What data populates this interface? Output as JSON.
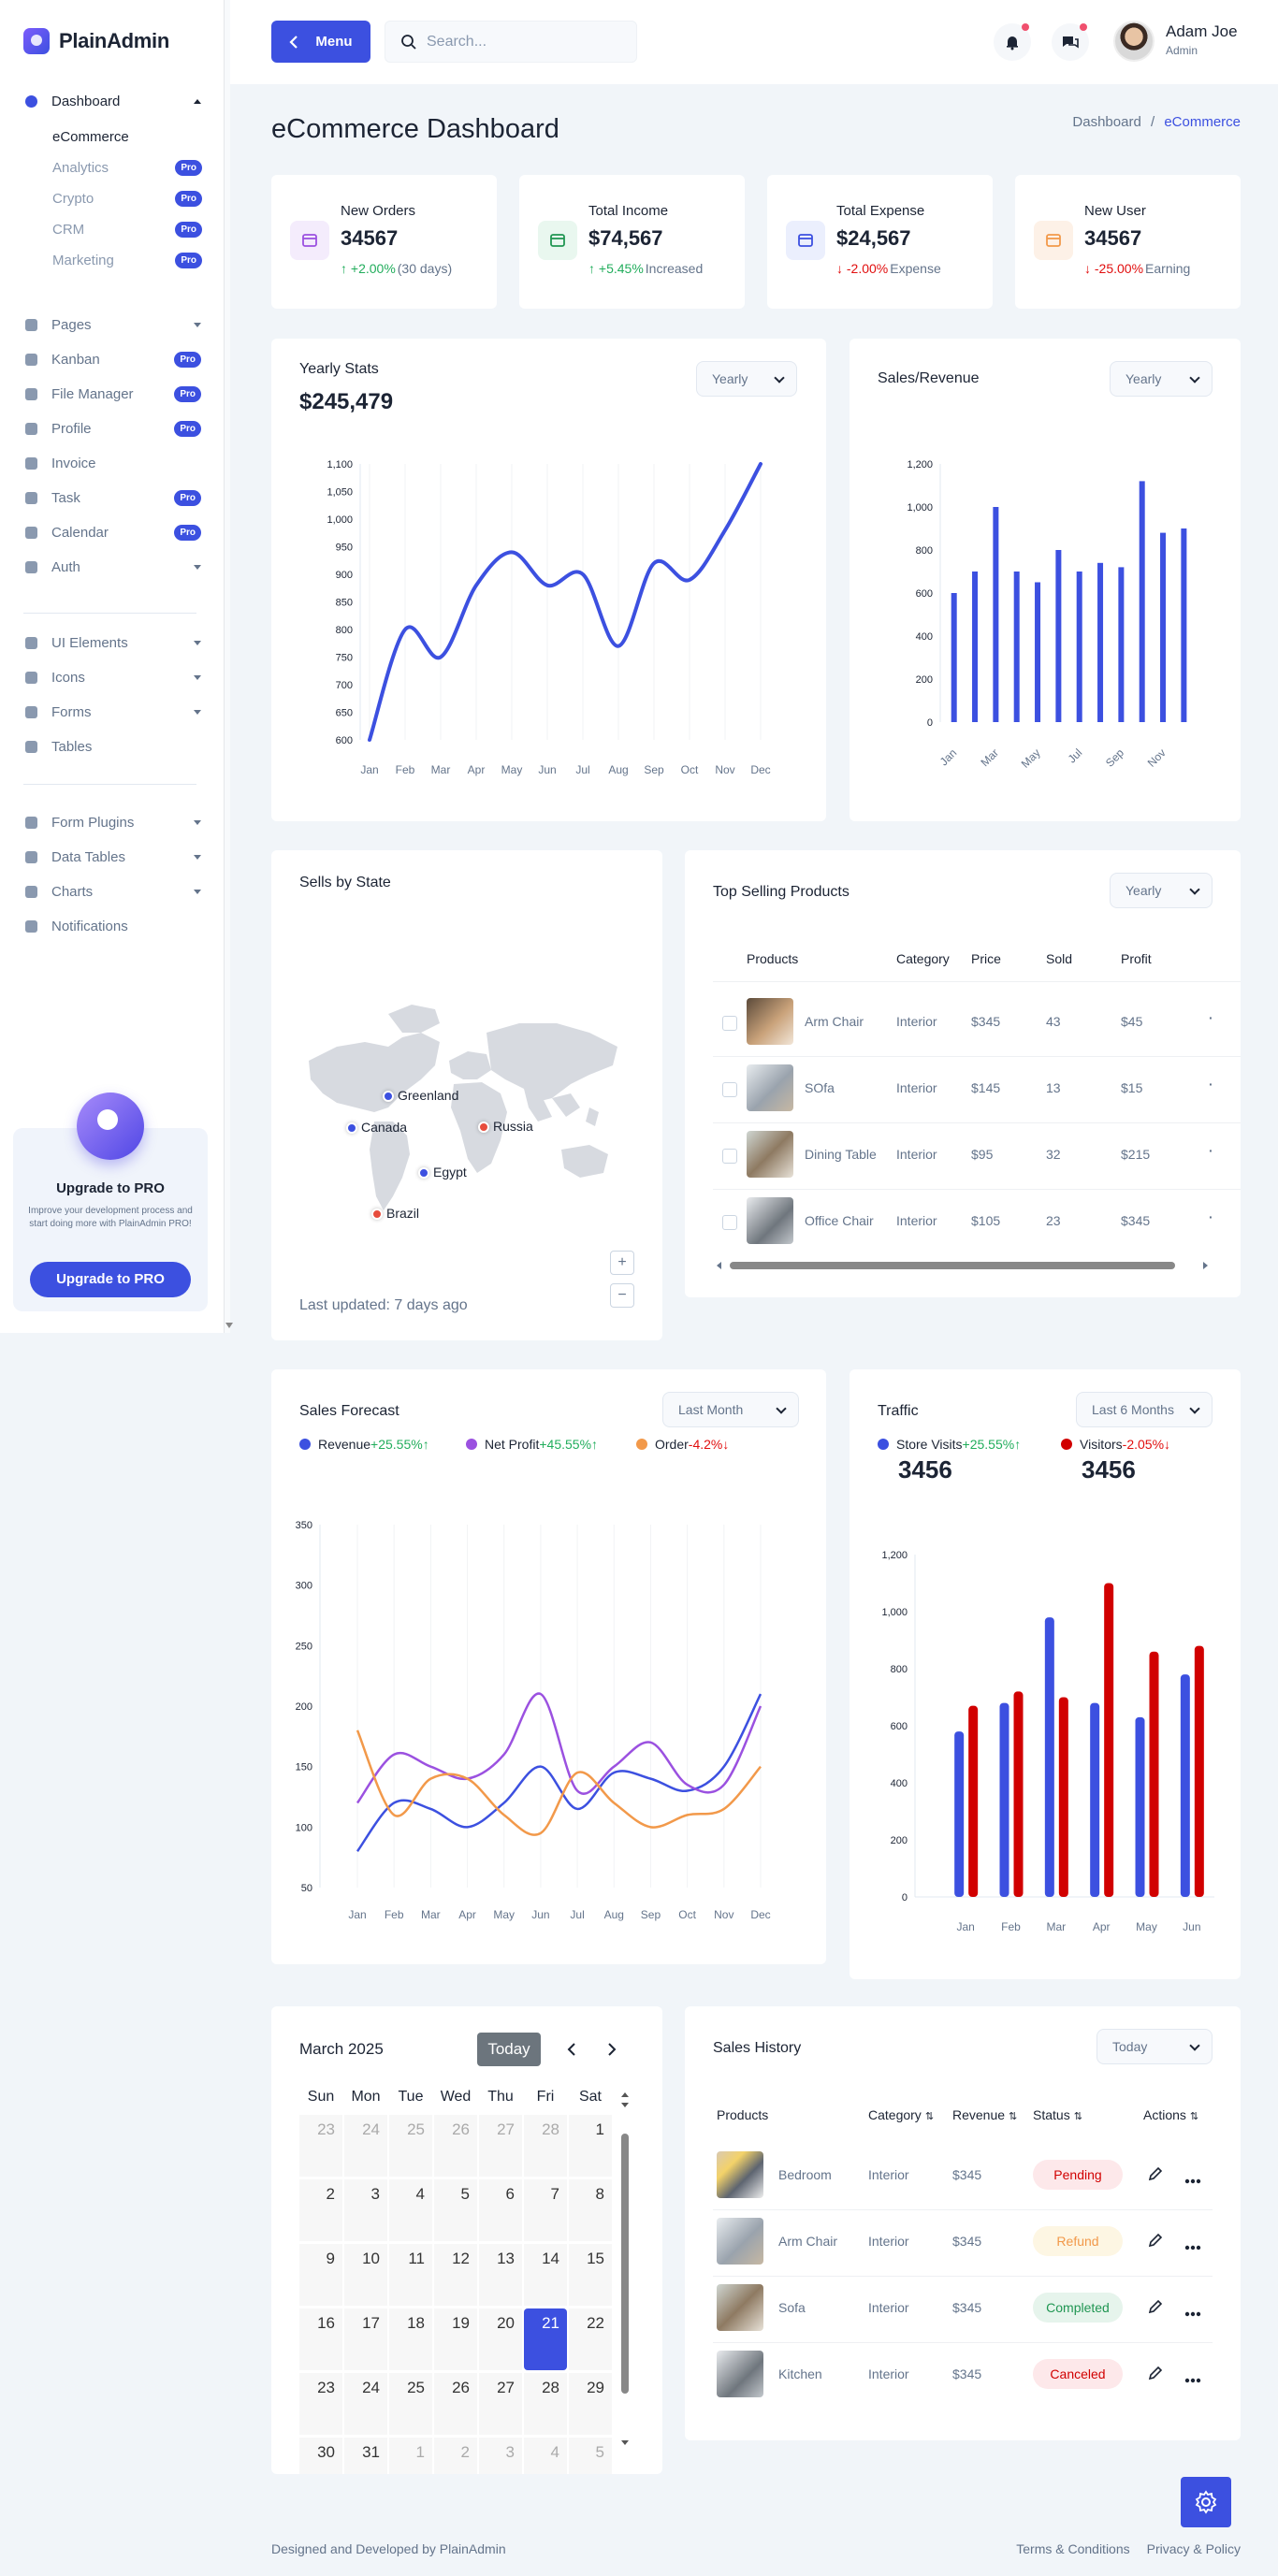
{
  "app": {
    "name": "PlainAdmin"
  },
  "sidebar": {
    "dashboard": "Dashboard",
    "dashboard_sub": [
      {
        "label": "eCommerce",
        "pro": ""
      },
      {
        "label": "Analytics",
        "pro": "Pro"
      },
      {
        "label": "Crypto",
        "pro": "Pro"
      },
      {
        "label": "CRM",
        "pro": "Pro"
      },
      {
        "label": "Marketing",
        "pro": "Pro"
      }
    ],
    "group1": [
      {
        "label": "Pages",
        "pro": "",
        "chevron": true,
        "icon": "file-icon"
      },
      {
        "label": "Kanban",
        "pro": "Pro",
        "chevron": false,
        "icon": "kanban-icon"
      },
      {
        "label": "File Manager",
        "pro": "Pro",
        "chevron": false,
        "icon": "folder-icon"
      },
      {
        "label": "Profile",
        "pro": "Pro",
        "chevron": false,
        "icon": "user-icon"
      },
      {
        "label": "Invoice",
        "pro": "",
        "chevron": false,
        "icon": "invoice-icon"
      },
      {
        "label": "Task",
        "pro": "Pro",
        "chevron": false,
        "icon": "task-icon"
      },
      {
        "label": "Calendar",
        "pro": "Pro",
        "chevron": false,
        "icon": "calendar-icon"
      },
      {
        "label": "Auth",
        "pro": "",
        "chevron": true,
        "icon": "login-icon"
      }
    ],
    "group2": [
      {
        "label": "UI Elements",
        "chevron": true,
        "icon": "grid-icon"
      },
      {
        "label": "Icons",
        "chevron": true,
        "icon": "cup-icon"
      },
      {
        "label": "Forms",
        "chevron": true,
        "icon": "form-icon"
      },
      {
        "label": "Tables",
        "chevron": false,
        "icon": "table-icon"
      }
    ],
    "group3": [
      {
        "label": "Form Plugins",
        "chevron": true,
        "icon": "plug-icon"
      },
      {
        "label": "Data Tables",
        "chevron": true,
        "icon": "database-icon"
      },
      {
        "label": "Charts",
        "chevron": true,
        "icon": "chart-icon"
      },
      {
        "label": "Notifications",
        "chevron": false,
        "icon": "bell-icon"
      }
    ],
    "upgrade": {
      "title": "Upgrade to PRO",
      "text": "Improve your development process and start doing more with PlainAdmin PRO!",
      "button": "Upgrade to PRO"
    }
  },
  "header": {
    "menu_label": "Menu",
    "search_placeholder": "Search...",
    "user_name": "Adam Joe",
    "user_role": "Admin"
  },
  "page": {
    "title": "eCommerce Dashboard",
    "breadcrumb": [
      "Dashboard",
      "/",
      "eCommerce"
    ]
  },
  "kpis": [
    {
      "label": "New Orders",
      "value": "34567",
      "delta": "+2.00%",
      "note": "(30 days)",
      "dir": "up",
      "icon": "cart-icon",
      "color": "#9b51e0",
      "bg": "#f4ecfc"
    },
    {
      "label": "Total Income",
      "value": "$74,567",
      "delta": "+5.45%",
      "note": "Increased",
      "dir": "up",
      "icon": "dollar-icon",
      "color": "#219653",
      "bg": "#e9f7ef"
    },
    {
      "label": "Total Expense",
      "value": "$24,567",
      "delta": "-2.00%",
      "note": "Expense",
      "dir": "down",
      "icon": "credit-card-icon",
      "color": "#3c50e0",
      "bg": "#ebeffd"
    },
    {
      "label": "New User",
      "value": "34567",
      "delta": "-25.00%",
      "note": "Earning",
      "dir": "down",
      "icon": "user-icon",
      "color": "#f2994a",
      "bg": "#fdf1e7"
    }
  ],
  "yearly": {
    "title": "Yearly Stats",
    "value": "$245,479",
    "filter": "Yearly"
  },
  "sales_rev": {
    "title": "Sales/Revenue",
    "filter": "Yearly"
  },
  "states": {
    "title": "Sells by State",
    "updated": "Last updated: 7 days ago",
    "zoom_in": "+",
    "zoom_out": "−",
    "markers": [
      {
        "label": "Greenland",
        "color": "#3c50e0"
      },
      {
        "label": "Canada",
        "color": "#3c50e0"
      },
      {
        "label": "Russia",
        "color": "#e74c3c"
      },
      {
        "label": "Egypt",
        "color": "#3c50e0"
      },
      {
        "label": "Brazil",
        "color": "#e74c3c"
      }
    ]
  },
  "top_products": {
    "title": "Top Selling Products",
    "filter": "Yearly",
    "headers": [
      "Products",
      "Category",
      "Price",
      "Sold",
      "Profit"
    ],
    "rows": [
      {
        "name": "Arm Chair",
        "category": "Interior",
        "price": "$345",
        "sold": "43",
        "profit": "$45"
      },
      {
        "name": "SOfa",
        "category": "Interior",
        "price": "$145",
        "sold": "13",
        "profit": "$15"
      },
      {
        "name": "Dining Table",
        "category": "Interior",
        "price": "$95",
        "sold": "32",
        "profit": "$215"
      },
      {
        "name": "Office Chair",
        "category": "Interior",
        "price": "$105",
        "sold": "23",
        "profit": "$345"
      }
    ]
  },
  "forecast": {
    "title": "Sales Forecast",
    "filter": "Last Month",
    "legend": [
      {
        "name": "Revenue",
        "delta": "+25.55%",
        "dir": "up",
        "color": "#3c50e0"
      },
      {
        "name": "Net Profit",
        "delta": "+45.55%",
        "dir": "up",
        "color": "#9b51e0"
      },
      {
        "name": "Order",
        "delta": "-4.2%",
        "dir": "down",
        "color": "#f2994a"
      }
    ]
  },
  "traffic": {
    "title": "Traffic",
    "filter": "Last 6 Months",
    "legend": [
      {
        "name": "Store Visits",
        "delta": "+25.55%",
        "dir": "up",
        "value": "3456",
        "color": "#3c50e0"
      },
      {
        "name": "Visitors",
        "delta": "-2.05%",
        "dir": "down",
        "value": "3456",
        "color": "#d10000"
      }
    ]
  },
  "calendar": {
    "title": "March 2025",
    "today_btn": "Today",
    "days": [
      "Sun",
      "Mon",
      "Tue",
      "Wed",
      "Thu",
      "Fri",
      "Sat"
    ],
    "weeks": [
      [
        "23",
        "24",
        "25",
        "26",
        "27",
        "28",
        "1"
      ],
      [
        "2",
        "3",
        "4",
        "5",
        "6",
        "7",
        "8"
      ],
      [
        "9",
        "10",
        "11",
        "12",
        "13",
        "14",
        "15"
      ],
      [
        "16",
        "17",
        "18",
        "19",
        "20",
        "21",
        "22"
      ],
      [
        "23",
        "24",
        "25",
        "26",
        "27",
        "28",
        "29"
      ],
      [
        "30",
        "31",
        "1",
        "2",
        "3",
        "4",
        "5"
      ]
    ],
    "selected": "21"
  },
  "history": {
    "title": "Sales History",
    "filter": "Today",
    "headers": [
      "Products",
      "Category",
      "Revenue",
      "Status",
      "Actions"
    ],
    "rows": [
      {
        "name": "Bedroom",
        "category": "Interior",
        "revenue": "$345",
        "status": "Pending",
        "status_color": "#d10000",
        "status_bg": "#fde8ea"
      },
      {
        "name": "Arm Chair",
        "category": "Interior",
        "revenue": "$345",
        "status": "Refund",
        "status_color": "#f2994a",
        "status_bg": "#fdf6e3"
      },
      {
        "name": "Sofa",
        "category": "Interior",
        "revenue": "$345",
        "status": "Completed",
        "status_color": "#219653",
        "status_bg": "#e6f4ec"
      },
      {
        "name": "Kitchen",
        "category": "Interior",
        "revenue": "$345",
        "status": "Canceled",
        "status_color": "#d10000",
        "status_bg": "#fde8ea"
      }
    ]
  },
  "footer": {
    "left": "Designed and Developed by PlainAdmin",
    "terms": "Terms & Conditions",
    "privacy": "Privacy & Policy"
  },
  "chart_data": [
    {
      "type": "line",
      "title": "Yearly Stats",
      "categories": [
        "Jan",
        "Feb",
        "Mar",
        "Apr",
        "May",
        "Jun",
        "Jul",
        "Aug",
        "Sep",
        "Oct",
        "Nov",
        "Dec"
      ],
      "series": [
        {
          "values": [
            600,
            800,
            750,
            880,
            940,
            880,
            900,
            770,
            920,
            890,
            980,
            1100
          ]
        }
      ],
      "ylim": [
        600,
        1100
      ],
      "yticks": [
        600,
        650,
        700,
        750,
        800,
        850,
        900,
        950,
        1000,
        1050,
        1100
      ],
      "color": "#3c50e0"
    },
    {
      "type": "bar",
      "title": "Sales/Revenue",
      "categories": [
        "Jan",
        "Feb",
        "Mar",
        "Apr",
        "May",
        "Jun",
        "Jul",
        "Aug",
        "Sep",
        "Oct",
        "Nov",
        "Dec"
      ],
      "xticks": [
        "Jan",
        "Mar",
        "May",
        "Jul",
        "Sep",
        "Nov"
      ],
      "values": [
        600,
        700,
        1000,
        700,
        650,
        800,
        700,
        740,
        720,
        1120,
        880,
        900
      ],
      "ylim": [
        0,
        1200
      ],
      "yticks": [
        0,
        200,
        400,
        600,
        800,
        1000,
        1200
      ],
      "color": "#3c50e0"
    },
    {
      "type": "line",
      "title": "Sales Forecast",
      "categories": [
        "Jan",
        "Feb",
        "Mar",
        "Apr",
        "May",
        "Jun",
        "Jul",
        "Aug",
        "Sep",
        "Oct",
        "Nov",
        "Dec"
      ],
      "series": [
        {
          "name": "Revenue",
          "values": [
            80,
            120,
            115,
            100,
            120,
            150,
            115,
            145,
            140,
            130,
            150,
            210
          ],
          "color": "#3c50e0"
        },
        {
          "name": "Net Profit",
          "values": [
            120,
            160,
            150,
            140,
            160,
            210,
            130,
            150,
            170,
            135,
            135,
            200
          ],
          "color": "#9b51e0"
        },
        {
          "name": "Order",
          "values": [
            180,
            110,
            140,
            140,
            110,
            95,
            145,
            120,
            100,
            110,
            115,
            150
          ],
          "color": "#f2994a"
        }
      ],
      "ylim": [
        50,
        350
      ],
      "yticks": [
        50,
        100,
        150,
        200,
        250,
        300,
        350
      ]
    },
    {
      "type": "bar",
      "title": "Traffic",
      "categories": [
        "Jan",
        "Feb",
        "Mar",
        "Apr",
        "May",
        "Jun"
      ],
      "series": [
        {
          "name": "Store Visits",
          "values": [
            580,
            680,
            980,
            680,
            630,
            780
          ],
          "color": "#3c50e0"
        },
        {
          "name": "Visitors",
          "values": [
            670,
            720,
            700,
            1100,
            860,
            880
          ],
          "color": "#d10000"
        }
      ],
      "ylim": [
        0,
        1200
      ],
      "yticks": [
        0,
        200,
        400,
        600,
        800,
        1000,
        1200
      ]
    }
  ]
}
